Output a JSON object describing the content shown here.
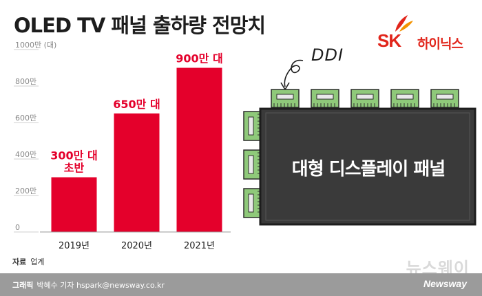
{
  "header": {
    "title": "OLED TV 패널 출하량 전망치"
  },
  "logo": {
    "brand": "SK",
    "name": "하이닉스"
  },
  "chart_data": {
    "type": "bar",
    "categories": [
      "2019년",
      "2020년",
      "2021년"
    ],
    "values": [
      300,
      650,
      900
    ],
    "data_labels": [
      [
        "300만 대",
        "초반"
      ],
      [
        "650만 대"
      ],
      [
        "900만 대"
      ]
    ],
    "y_ticks": [
      {
        "value": 0,
        "label": "0"
      },
      {
        "value": 200,
        "label": "200만"
      },
      {
        "value": 400,
        "label": "400만"
      },
      {
        "value": 600,
        "label": "600만"
      },
      {
        "value": 800,
        "label": "800만"
      },
      {
        "value": 1000,
        "label": "1000만 (대)"
      }
    ],
    "ylim": [
      0,
      1000
    ],
    "bar_color": "#e4002b",
    "label_color": "#e4002b",
    "grid": false
  },
  "diagram": {
    "ddi_label": "DDI",
    "panel_label": "대형 디스플레이 패널"
  },
  "source": {
    "label": "자료",
    "text": "업계"
  },
  "footer": {
    "label": "그래픽",
    "credit": "박혜수 기자 hspark@newsway.co.kr",
    "brand": "Newsway",
    "watermark": "뉴스웨이"
  },
  "colors": {
    "accent": "#e4002b",
    "panel": "#3a3a3a",
    "chip": "#8fc97a"
  }
}
